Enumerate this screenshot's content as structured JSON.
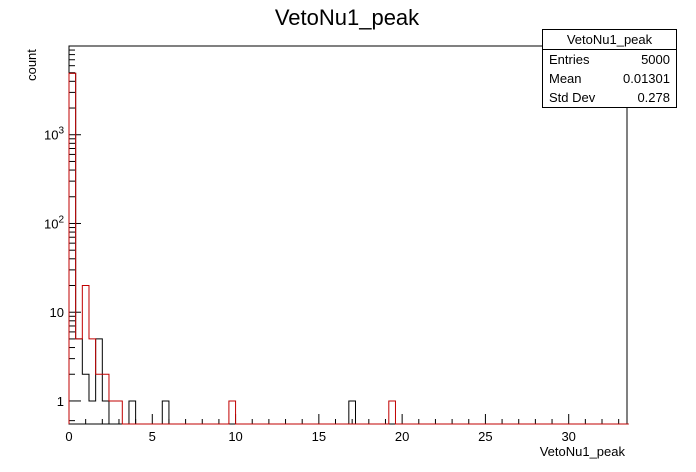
{
  "chart_data": {
    "type": "histogram",
    "title": "VetoNu1_peak",
    "xlabel": "VetoNu1_peak",
    "ylabel": "count",
    "x_scale": "linear",
    "y_scale": "log",
    "xlim": [
      0,
      33.5
    ],
    "ylim": [
      0.55,
      10000
    ],
    "x_ticks": [
      "0",
      "5",
      "10",
      "15",
      "20",
      "25",
      "30"
    ],
    "y_ticks": [
      "1",
      "10",
      "10^2",
      "10^3"
    ],
    "bin_width": 0.4,
    "series": [
      {
        "color": "#000000",
        "bins": [
          {
            "x": 0.0,
            "count": 4930
          },
          {
            "x": 0.4,
            "count": 5
          },
          {
            "x": 0.8,
            "count": 2
          },
          {
            "x": 1.2,
            "count": 1
          },
          {
            "x": 1.6,
            "count": 5
          },
          {
            "x": 2.0,
            "count": 1
          },
          {
            "x": 3.6,
            "count": 1
          },
          {
            "x": 5.6,
            "count": 1
          },
          {
            "x": 16.8,
            "count": 1
          }
        ]
      },
      {
        "color": "#c00000",
        "bins": [
          {
            "x": 0.0,
            "count": 4930
          },
          {
            "x": 0.4,
            "count": 5
          },
          {
            "x": 0.8,
            "count": 20
          },
          {
            "x": 1.2,
            "count": 5
          },
          {
            "x": 1.6,
            "count": 2
          },
          {
            "x": 2.0,
            "count": 2
          },
          {
            "x": 2.4,
            "count": 1
          },
          {
            "x": 2.8,
            "count": 1
          },
          {
            "x": 9.6,
            "count": 1
          },
          {
            "x": 19.2,
            "count": 1
          }
        ]
      }
    ]
  },
  "stats": {
    "title": "VetoNu1_peak",
    "entries_label": "Entries",
    "entries_value": "5000",
    "mean_label": "Mean",
    "mean_value": "0.01301",
    "std_label": "Std Dev",
    "std_value": "0.278"
  }
}
